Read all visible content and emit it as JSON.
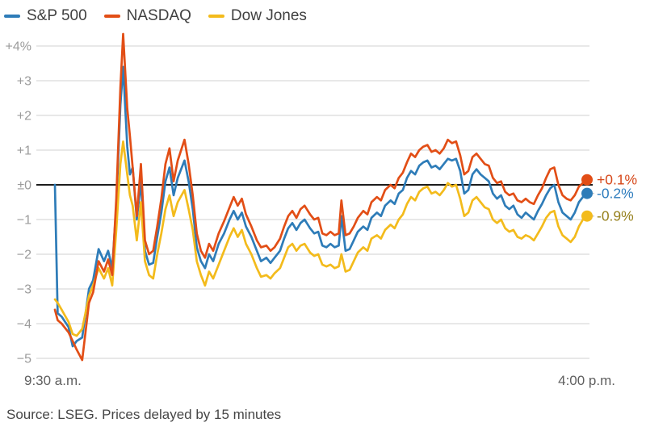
{
  "legend": [
    {
      "label": "S&P 500",
      "color": "#2e7cb8"
    },
    {
      "label": "NASDAQ",
      "color": "#e24e16"
    },
    {
      "label": "Dow Jones",
      "color": "#f3bb1c"
    }
  ],
  "y_axis": {
    "ticks": [
      {
        "label": "+4%",
        "value": 4
      },
      {
        "label": "+3",
        "value": 3
      },
      {
        "label": "+2",
        "value": 2
      },
      {
        "label": "+1",
        "value": 1
      },
      {
        "label": "±0",
        "value": 0
      },
      {
        "label": "−1",
        "value": -1
      },
      {
        "label": "−2",
        "value": -2
      },
      {
        "label": "−3",
        "value": -3
      },
      {
        "label": "−4",
        "value": -4
      },
      {
        "label": "−5",
        "value": -5
      }
    ]
  },
  "x_axis": {
    "left_label": "9:30 a.m.",
    "right_label": "4:00 p.m."
  },
  "source": "Source: LSEG. Prices delayed by 15 minutes",
  "colors": {
    "grid": "#d9d9d9",
    "zero_line": "#1c1c1c",
    "tick_label": "#9b9b9b",
    "time_label": "#5f5f5f",
    "right_tick": "#c9c9c9"
  },
  "chart_data": {
    "type": "line",
    "x_unit": "minutes after 9:30 a.m. open",
    "x_range_labels": [
      "9:30 a.m.",
      "4:00 p.m."
    ],
    "ylim": [
      -5,
      4
    ],
    "grid": true,
    "legend_position": "top-left",
    "x": [
      0,
      2,
      5,
      10,
      13,
      16,
      20,
      25,
      28,
      32,
      36,
      39,
      42,
      45,
      48,
      50,
      53,
      55,
      57,
      60,
      63,
      66,
      69,
      72,
      75,
      78,
      81,
      84,
      87,
      90,
      95,
      98,
      101,
      104,
      107,
      110,
      113,
      116,
      120,
      124,
      128,
      131,
      134,
      137,
      140,
      144,
      148,
      151,
      155,
      158,
      161,
      165,
      168,
      171,
      174,
      177,
      180,
      183,
      187,
      190,
      193,
      196,
      199,
      202,
      205,
      208,
      210,
      213,
      216,
      219,
      222,
      226,
      229,
      232,
      236,
      239,
      242,
      246,
      249,
      252,
      255,
      258,
      261,
      264,
      267,
      270,
      273,
      276,
      279,
      282,
      285,
      288,
      291,
      294,
      297,
      300,
      303,
      306,
      309,
      312,
      315,
      318,
      321,
      324,
      327,
      330,
      333,
      336,
      339,
      342,
      345,
      348,
      351,
      354,
      357,
      360,
      363,
      366,
      369,
      372,
      375,
      378,
      381,
      384,
      387,
      390
    ],
    "series": [
      {
        "name": "S&P 500",
        "color": "#2e7cb8",
        "final_change_pct": -0.2,
        "end_label": "-0.2%",
        "end_label_color": "#2d7cbd",
        "values": [
          0.0,
          -3.7,
          -3.8,
          -4.1,
          -4.65,
          -4.5,
          -4.4,
          -3.0,
          -2.75,
          -1.85,
          -2.2,
          -1.9,
          -2.4,
          -0.6,
          2.3,
          3.4,
          1.1,
          0.3,
          0.5,
          -1.0,
          0.1,
          -1.9,
          -2.3,
          -2.25,
          -1.5,
          -0.8,
          0.1,
          0.5,
          -0.3,
          0.2,
          0.7,
          0.1,
          -0.7,
          -1.8,
          -2.2,
          -2.4,
          -2.0,
          -2.2,
          -1.7,
          -1.4,
          -1.0,
          -0.75,
          -1.0,
          -0.8,
          -1.2,
          -1.5,
          -1.9,
          -2.2,
          -2.1,
          -2.25,
          -2.1,
          -1.9,
          -1.55,
          -1.25,
          -1.1,
          -1.3,
          -1.1,
          -1.0,
          -1.25,
          -1.4,
          -1.35,
          -1.75,
          -1.8,
          -1.7,
          -1.8,
          -1.75,
          -0.9,
          -1.9,
          -1.85,
          -1.6,
          -1.35,
          -1.2,
          -1.3,
          -0.95,
          -0.8,
          -0.9,
          -0.6,
          -0.45,
          -0.55,
          -0.25,
          -0.15,
          0.2,
          0.4,
          0.3,
          0.55,
          0.65,
          0.7,
          0.5,
          0.55,
          0.45,
          0.6,
          0.75,
          0.7,
          0.75,
          0.4,
          -0.25,
          -0.15,
          0.3,
          0.45,
          0.3,
          0.2,
          0.1,
          -0.25,
          -0.4,
          -0.3,
          -0.6,
          -0.7,
          -0.6,
          -0.85,
          -0.95,
          -0.8,
          -0.9,
          -1.0,
          -0.75,
          -0.55,
          -0.3,
          -0.1,
          0.0,
          -0.5,
          -0.8,
          -0.9,
          -1.0,
          -0.8,
          -0.5,
          -0.35,
          -0.2
        ]
      },
      {
        "name": "NASDAQ",
        "color": "#e24e16",
        "final_change_pct": 0.1,
        "end_label": "+0.1%",
        "end_label_color": "#d6481a",
        "values": [
          -3.6,
          -3.9,
          -4.0,
          -4.25,
          -4.5,
          -4.75,
          -5.05,
          -3.4,
          -3.1,
          -2.2,
          -2.5,
          -2.15,
          -2.6,
          -0.4,
          2.8,
          4.35,
          2.2,
          1.4,
          0.5,
          -0.9,
          0.6,
          -1.6,
          -2.0,
          -1.9,
          -1.2,
          -0.4,
          0.6,
          1.05,
          0.1,
          0.7,
          1.3,
          0.6,
          -0.3,
          -1.4,
          -1.9,
          -2.1,
          -1.7,
          -1.9,
          -1.4,
          -1.05,
          -0.65,
          -0.35,
          -0.6,
          -0.4,
          -0.85,
          -1.2,
          -1.6,
          -1.8,
          -1.75,
          -1.9,
          -1.8,
          -1.55,
          -1.2,
          -0.9,
          -0.75,
          -0.95,
          -0.7,
          -0.6,
          -0.85,
          -1.0,
          -0.95,
          -1.4,
          -1.45,
          -1.35,
          -1.45,
          -1.4,
          -0.45,
          -1.45,
          -1.4,
          -1.2,
          -0.95,
          -0.75,
          -0.85,
          -0.5,
          -0.35,
          -0.45,
          -0.15,
          0.0,
          -0.1,
          0.2,
          0.35,
          0.65,
          0.9,
          0.8,
          1.0,
          1.1,
          1.15,
          0.95,
          1.0,
          0.9,
          1.05,
          1.3,
          1.2,
          1.25,
          0.85,
          0.3,
          0.4,
          0.8,
          0.9,
          0.75,
          0.6,
          0.55,
          0.2,
          0.05,
          0.1,
          -0.2,
          -0.3,
          -0.25,
          -0.45,
          -0.5,
          -0.4,
          -0.5,
          -0.55,
          -0.3,
          -0.1,
          0.2,
          0.45,
          0.5,
          0.0,
          -0.3,
          -0.4,
          -0.45,
          -0.3,
          -0.05,
          0.05,
          0.1
        ]
      },
      {
        "name": "Dow Jones",
        "color": "#f3bb1c",
        "final_change_pct": -0.9,
        "end_label": "-0.9%",
        "end_label_color": "#97811d",
        "values": [
          -3.3,
          -3.4,
          -3.6,
          -3.95,
          -4.3,
          -4.35,
          -4.15,
          -3.2,
          -2.9,
          -2.4,
          -2.7,
          -2.4,
          -2.9,
          -1.3,
          0.6,
          1.25,
          0.3,
          -0.3,
          -0.6,
          -1.6,
          -0.5,
          -2.2,
          -2.6,
          -2.7,
          -2.0,
          -1.4,
          -0.7,
          -0.3,
          -0.9,
          -0.5,
          -0.15,
          -0.7,
          -1.3,
          -2.2,
          -2.6,
          -2.9,
          -2.5,
          -2.7,
          -2.3,
          -1.9,
          -1.5,
          -1.25,
          -1.5,
          -1.3,
          -1.7,
          -2.0,
          -2.4,
          -2.65,
          -2.6,
          -2.7,
          -2.55,
          -2.4,
          -2.1,
          -1.8,
          -1.7,
          -1.9,
          -1.75,
          -1.7,
          -1.95,
          -2.05,
          -2.0,
          -2.3,
          -2.35,
          -2.3,
          -2.4,
          -2.35,
          -2.0,
          -2.5,
          -2.45,
          -2.2,
          -1.95,
          -1.8,
          -1.9,
          -1.55,
          -1.45,
          -1.55,
          -1.3,
          -1.15,
          -1.25,
          -1.0,
          -0.85,
          -0.55,
          -0.35,
          -0.45,
          -0.2,
          -0.1,
          -0.05,
          -0.25,
          -0.2,
          -0.3,
          -0.15,
          0.05,
          -0.05,
          0.0,
          -0.4,
          -0.9,
          -0.8,
          -0.45,
          -0.35,
          -0.5,
          -0.65,
          -0.7,
          -1.0,
          -1.1,
          -1.0,
          -1.25,
          -1.35,
          -1.3,
          -1.5,
          -1.55,
          -1.45,
          -1.5,
          -1.6,
          -1.4,
          -1.2,
          -0.95,
          -0.8,
          -0.75,
          -1.2,
          -1.45,
          -1.55,
          -1.65,
          -1.5,
          -1.2,
          -1.0,
          -0.9
        ]
      }
    ]
  }
}
